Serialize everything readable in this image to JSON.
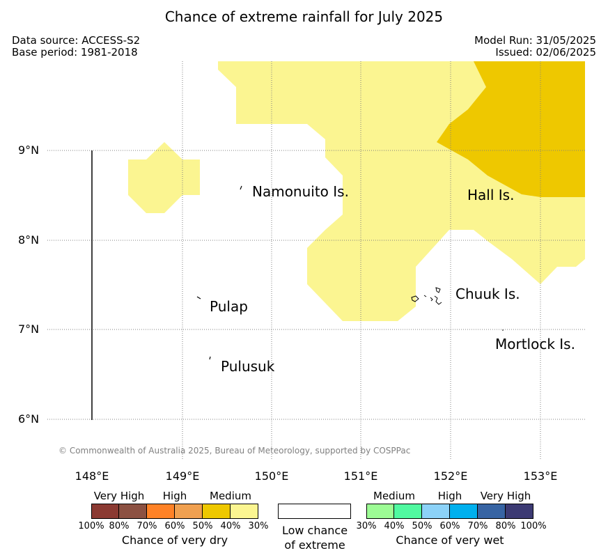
{
  "title": "Chance of extreme rainfall for July 2025",
  "meta": {
    "data_source": "Data source: ACCESS-S2",
    "base_period": "Base period: 1981-2018",
    "model_run": "Model Run: 31/05/2025",
    "issued": "Issued: 02/06/2025"
  },
  "lat_labels": [
    "9°N",
    "8°N",
    "7°N",
    "6°N"
  ],
  "lon_labels": [
    "148°E",
    "149°E",
    "150°E",
    "151°E",
    "152°E",
    "153°E"
  ],
  "islands": {
    "namonuito": "Namonuito Is.",
    "hall": "Hall Is.",
    "pulap": "Pulap",
    "chuuk": "Chuuk Is.",
    "pulusuk": "Pulusuk",
    "mortlock": "Mortlock Is."
  },
  "copyright": "© Commonwealth of Australia 2025, Bureau of Meteorology, supported by COSPPac",
  "legend": {
    "dry": {
      "headings": [
        "Very High",
        "High",
        "Medium"
      ],
      "ticks": [
        "100%",
        "80%",
        "70%",
        "60%",
        "50%",
        "40%",
        "30%"
      ],
      "title": "Chance of very dry",
      "colors": [
        "#8b3a32",
        "#8c5142",
        "#ff8227",
        "#f0a050",
        "#eec800",
        "#fbf591"
      ]
    },
    "low": {
      "line1": "Low chance",
      "line2": "of extreme"
    },
    "wet": {
      "headings": [
        "Medium",
        "High",
        "Very High"
      ],
      "ticks": [
        "30%",
        "40%",
        "50%",
        "60%",
        "70%",
        "80%",
        "100%"
      ],
      "title": "Chance of very wet",
      "colors": [
        "#9dfc95",
        "#50f9a0",
        "#8cd2f8",
        "#00b0ee",
        "#3764a3",
        "#3c3a73"
      ]
    }
  },
  "colors": {
    "medium_dry": "#fbf591",
    "high_dry": "#eec800",
    "gridline": "#808080"
  }
}
